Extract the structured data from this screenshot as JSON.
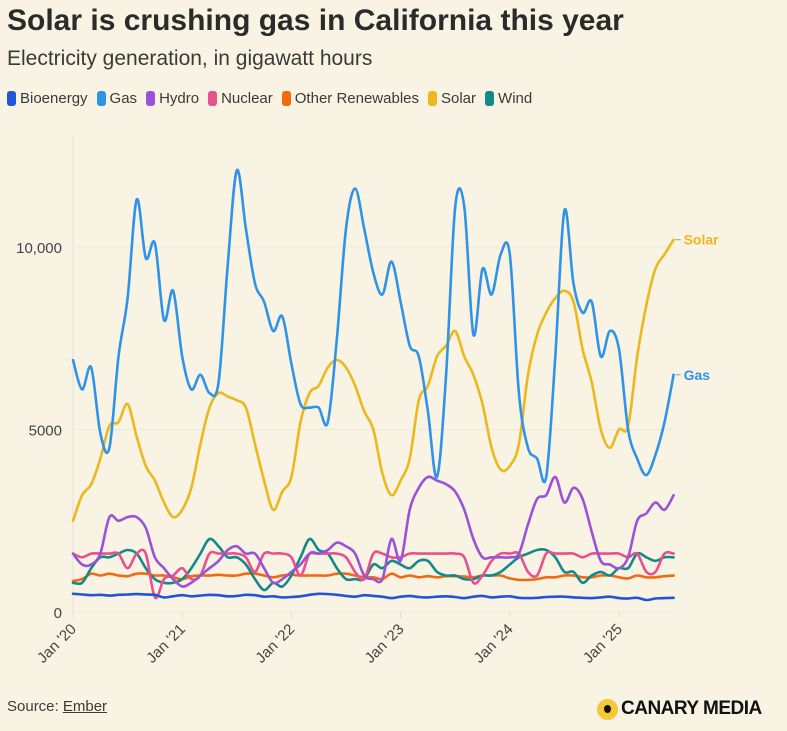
{
  "header": {
    "title": "Solar is crushing gas in California this year",
    "subtitle": "Electricity generation, in gigawatt hours"
  },
  "footer": {
    "source_label": "Source:",
    "source_link": "Ember",
    "logo_text": "CANARY MEDIA"
  },
  "chart_data": {
    "type": "line",
    "title": "Solar is crushing gas in California this year",
    "subtitle": "Electricity generation, in gigawatt hours",
    "xlabel": "",
    "ylabel": "",
    "x_start": "Jan 2020",
    "x_end": "Jul 2025",
    "frequency": "monthly",
    "x_ticks": [
      "Jan '20",
      "Jan '21",
      "Jan '22",
      "Jan '23",
      "Jan '24",
      "Jan '25"
    ],
    "y_ticks": [
      {
        "value": 0,
        "label": "0"
      },
      {
        "value": 5000,
        "label": "5000"
      },
      {
        "value": 10000,
        "label": "10,000"
      }
    ],
    "ylim": [
      0,
      12500
    ],
    "grid": true,
    "legend": "top",
    "end_labels": [
      "Solar",
      "Gas"
    ],
    "series": [
      {
        "name": "Bioenergy",
        "color": "#1f55d6",
        "values": [
          500,
          480,
          460,
          470,
          450,
          470,
          480,
          490,
          480,
          470,
          400,
          430,
          460,
          430,
          450,
          470,
          460,
          430,
          440,
          470,
          460,
          420,
          430,
          400,
          410,
          430,
          470,
          500,
          490,
          470,
          440,
          420,
          460,
          440,
          420,
          380,
          420,
          440,
          410,
          400,
          420,
          430,
          410,
          380,
          420,
          440,
          400,
          420,
          430,
          390,
          380,
          390,
          410,
          420,
          420,
          400,
          390,
          380,
          400,
          420,
          380,
          370,
          390,
          330,
          370,
          380,
          390
        ]
      },
      {
        "name": "Gas",
        "color": "#2f93e8",
        "values": [
          6900,
          6100,
          6700,
          4900,
          4500,
          7000,
          8600,
          11300,
          9700,
          10100,
          8000,
          8800,
          7000,
          6100,
          6500,
          6000,
          6300,
          9500,
          12100,
          10500,
          9000,
          8500,
          7700,
          8100,
          6800,
          5700,
          5600,
          5600,
          5200,
          7500,
          10500,
          11600,
          10500,
          9300,
          8700,
          9600,
          8500,
          7300,
          7000,
          5500,
          3700,
          6500,
          11100,
          11100,
          7600,
          9400,
          8700,
          9800,
          9800,
          6000,
          4500,
          4200,
          3700,
          7000,
          11000,
          9000,
          8200,
          8500,
          7000,
          7700,
          7200,
          5000,
          4200,
          3750,
          4300,
          5200,
          6500
        ]
      },
      {
        "name": "Hydro",
        "color": "#9a52d6",
        "values": [
          1600,
          1300,
          1300,
          1600,
          2600,
          2500,
          2600,
          2600,
          2300,
          1500,
          1200,
          900,
          700,
          800,
          1000,
          1200,
          1400,
          1700,
          1800,
          1600,
          1600,
          1200,
          800,
          900,
          1100,
          1300,
          1600,
          1600,
          1700,
          1900,
          1800,
          1600,
          1000,
          900,
          900,
          2000,
          1400,
          2800,
          3400,
          3700,
          3600,
          3500,
          3300,
          2800,
          2000,
          1500,
          1500,
          1500,
          1500,
          1600,
          2400,
          3100,
          3200,
          3700,
          3000,
          3400,
          3100,
          2200,
          1400,
          1300,
          1200,
          1500,
          2500,
          2700,
          3000,
          2800,
          3200
        ]
      },
      {
        "name": "Nuclear",
        "color": "#e8508e",
        "values": [
          1600,
          1500,
          1600,
          1600,
          1600,
          1600,
          1200,
          1600,
          1600,
          400,
          900,
          1000,
          1200,
          900,
          1000,
          1600,
          1600,
          1600,
          1600,
          1500,
          1100,
          1600,
          1600,
          1600,
          1500,
          1000,
          1600,
          1600,
          1600,
          1600,
          1500,
          1100,
          900,
          1600,
          1600,
          1500,
          1500,
          1600,
          1600,
          1600,
          1600,
          1600,
          1600,
          1500,
          800,
          1000,
          1400,
          1600,
          1600,
          1600,
          1100,
          1000,
          1600,
          1600,
          1600,
          1600,
          1500,
          1600,
          1600,
          1600,
          1600,
          1500,
          1600,
          1100,
          1100,
          1600,
          1600
        ]
      },
      {
        "name": "Other Renewables",
        "color": "#f26a10",
        "values": [
          850,
          900,
          1050,
          1000,
          1050,
          1000,
          980,
          1050,
          1050,
          1000,
          1000,
          950,
          900,
          980,
          1000,
          1000,
          1020,
          1000,
          1000,
          1050,
          1050,
          1000,
          950,
          1000,
          1020,
          1000,
          1000,
          1000,
          1000,
          1050,
          1050,
          1000,
          950,
          950,
          900,
          1050,
          950,
          1000,
          950,
          980,
          950,
          980,
          980,
          970,
          950,
          1000,
          1000,
          1000,
          920,
          880,
          880,
          900,
          950,
          950,
          1000,
          1000,
          950,
          950,
          1000,
          1000,
          950,
          920,
          1000,
          950,
          950,
          980,
          1000
        ]
      },
      {
        "name": "Solar",
        "color": "#ecb81f",
        "values": [
          2500,
          3200,
          3500,
          4200,
          5100,
          5200,
          5700,
          4800,
          4000,
          3600,
          3000,
          2600,
          2800,
          3400,
          4600,
          5600,
          6000,
          5900,
          5800,
          5600,
          4600,
          3600,
          2800,
          3300,
          3700,
          5200,
          6000,
          6200,
          6700,
          6900,
          6700,
          6200,
          5500,
          5000,
          3800,
          3200,
          3600,
          4200,
          5800,
          6200,
          7000,
          7300,
          7700,
          7000,
          6500,
          5700,
          4500,
          3900,
          4000,
          4600,
          6500,
          7600,
          8200,
          8600,
          8800,
          8500,
          7200,
          6300,
          5000,
          4500,
          5000,
          5100,
          7000,
          8400,
          9400,
          9800,
          10200
        ]
      },
      {
        "name": "Wind",
        "color": "#138a8a",
        "values": [
          800,
          800,
          1200,
          1500,
          1500,
          1600,
          1700,
          1600,
          1200,
          900,
          800,
          800,
          900,
          1200,
          1600,
          2000,
          1800,
          1500,
          1500,
          1300,
          900,
          600,
          800,
          700,
          1000,
          1500,
          2000,
          1700,
          1600,
          1200,
          900,
          900,
          900,
          1300,
          1200,
          1400,
          1300,
          1200,
          1400,
          1400,
          1100,
          1000,
          1000,
          900,
          900,
          1000,
          1000,
          1100,
          1300,
          1500,
          1600,
          1700,
          1700,
          1500,
          1100,
          1100,
          800,
          1000,
          1100,
          1000,
          1200,
          1200,
          1600,
          1500,
          1400,
          1500,
          1500
        ]
      }
    ]
  }
}
